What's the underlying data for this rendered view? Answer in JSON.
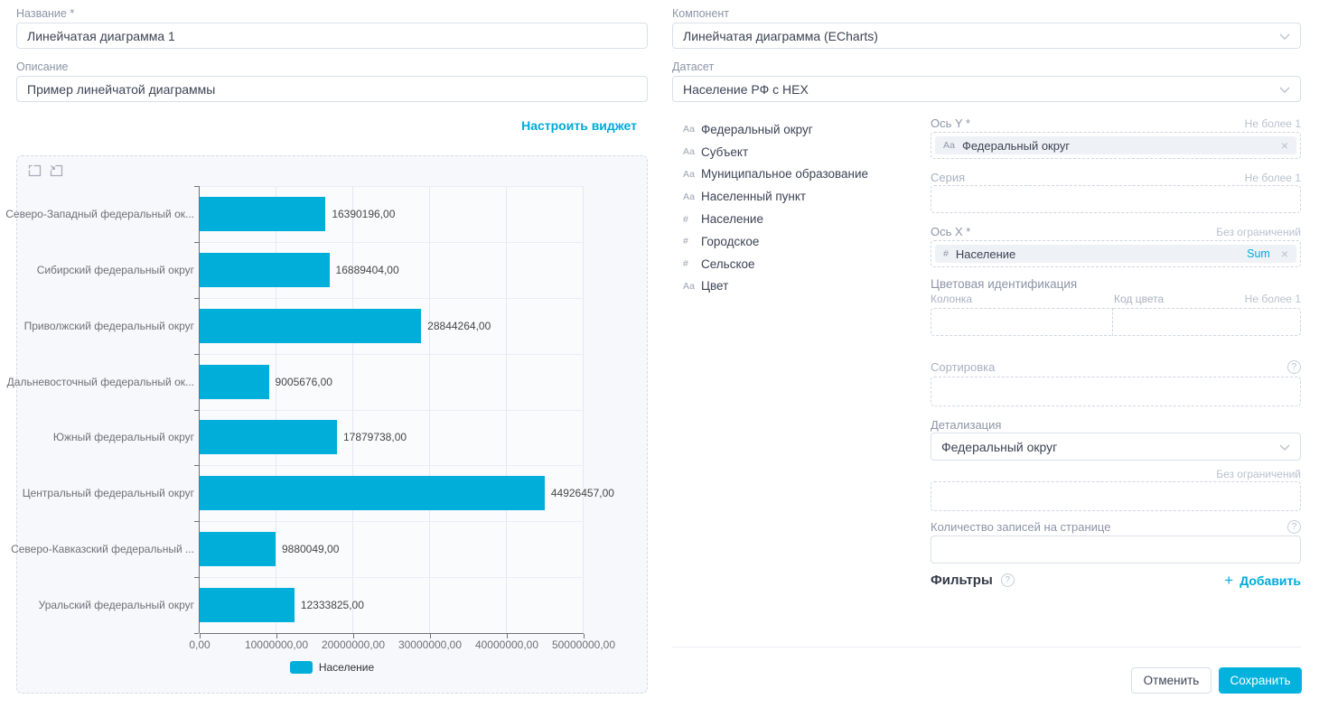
{
  "colors": {
    "accent": "#00ABD8",
    "bar": "#00AEDA",
    "save_button_bg": "#00B2DC"
  },
  "left": {
    "name_label": "Название *",
    "name_value": "Линейчатая диаграмма 1",
    "description_label": "Описание",
    "description_value": "Пример линейчатой диаграммы",
    "configure_widget_link": "Настроить виджет"
  },
  "right": {
    "component_label": "Компонент",
    "component_value": "Линейчатая диаграмма (ECharts)",
    "dataset_label": "Датасет",
    "dataset_value": "Население РФ с HEX",
    "fields": [
      {
        "type": "Аа",
        "name": "Федеральный округ"
      },
      {
        "type": "Аа",
        "name": "Субъект"
      },
      {
        "type": "Аа",
        "name": "Муниципальное образование"
      },
      {
        "type": "Аа",
        "name": "Населенный пункт"
      },
      {
        "type": "#",
        "name": "Население"
      },
      {
        "type": "#",
        "name": "Городское"
      },
      {
        "type": "#",
        "name": "Сельское"
      },
      {
        "type": "Аа",
        "name": "Цвет"
      }
    ],
    "axis_y": {
      "label": "Ось Y *",
      "limit_hint": "Не более 1",
      "chip_type": "Аа",
      "chip_name": "Федеральный округ"
    },
    "series": {
      "label": "Серия",
      "limit_hint": "Не более 1"
    },
    "axis_x": {
      "label": "Ось X *",
      "limit_hint": "Без ограничений",
      "chip_type": "#",
      "chip_name": "Население",
      "chip_agg": "Sum"
    },
    "color_identification": {
      "label": "Цветовая идентификация",
      "column_label": "Колонка",
      "color_code_label": "Код цвета",
      "limit_hint": "Не более 1"
    },
    "sorting": {
      "label": "Сортировка"
    },
    "detalization": {
      "label": "Детализация",
      "value": "Федеральный округ",
      "limit_hint": "Без ограничений"
    },
    "page_size": {
      "label": "Количество записей на странице"
    },
    "filters": {
      "label": "Фильтры",
      "add_label": "Добавить",
      "plus": "+"
    },
    "cancel_button": "Отменить",
    "save_button": "Сохранить"
  },
  "chart_data": {
    "type": "bar",
    "orientation": "horizontal",
    "series_name": "Население",
    "categories": [
      "Северо-Западный федеральный ок...",
      "Сибирский федеральный округ",
      "Приволжский федеральный округ",
      "Дальневосточный федеральный ок...",
      "Южный федеральный округ",
      "Центральный федеральный округ",
      "Северо-Кавказский федеральный ...",
      "Уральский федеральный округ"
    ],
    "values": [
      16390196,
      16889404,
      28844264,
      9005676,
      17879738,
      44926457,
      9880049,
      12333825
    ],
    "value_labels": [
      "16390196,00",
      "16889404,00",
      "28844264,00",
      "9005676,00",
      "17879738,00",
      "44926457,00",
      "9880049,00",
      "12333825,00"
    ],
    "x_ticks": [
      "0,00",
      "10000000,00",
      "20000000,00",
      "30000000,00",
      "40000000,00",
      "50000000,00"
    ],
    "xlim": [
      0,
      50000000
    ],
    "grid": true,
    "legend_position": "bottom",
    "bar_color": "#00AEDA"
  }
}
